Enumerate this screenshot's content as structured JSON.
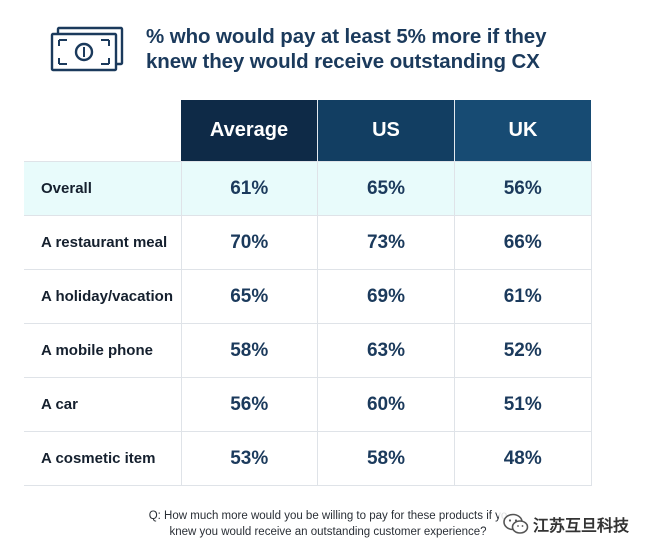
{
  "header": {
    "icon": "money-bill-icon",
    "title_line1": "% who would pay at least 5% more if they",
    "title_line2": "knew they would receive outstanding CX"
  },
  "chart_data": {
    "type": "table",
    "title": "% who would pay at least 5% more if they knew they would receive outstanding CX",
    "columns": [
      "Average",
      "US",
      "UK"
    ],
    "rows": [
      {
        "label": "Overall",
        "values": [
          "61%",
          "65%",
          "56%"
        ],
        "highlight": true
      },
      {
        "label": "A restaurant meal",
        "values": [
          "70%",
          "73%",
          "66%"
        ]
      },
      {
        "label": "A holiday/vacation",
        "values": [
          "65%",
          "69%",
          "61%"
        ]
      },
      {
        "label": "A mobile phone",
        "values": [
          "58%",
          "63%",
          "52%"
        ]
      },
      {
        "label": "A car",
        "values": [
          "56%",
          "60%",
          "51%"
        ]
      },
      {
        "label": "A cosmetic item",
        "values": [
          "53%",
          "58%",
          "48%"
        ]
      }
    ]
  },
  "footnote": {
    "line1": "Q: How much more would you be willing to pay for these products if yo",
    "line2": "knew you would receive an outstanding customer experience?"
  },
  "watermark": {
    "icon": "wechat-icon",
    "text": "江苏互旦科技"
  },
  "colors": {
    "title": "#1b3a5c",
    "header_average": "#0e2a47",
    "header_us": "#123e62",
    "header_uk": "#174b73",
    "highlight_row": "#e8fbfb"
  }
}
